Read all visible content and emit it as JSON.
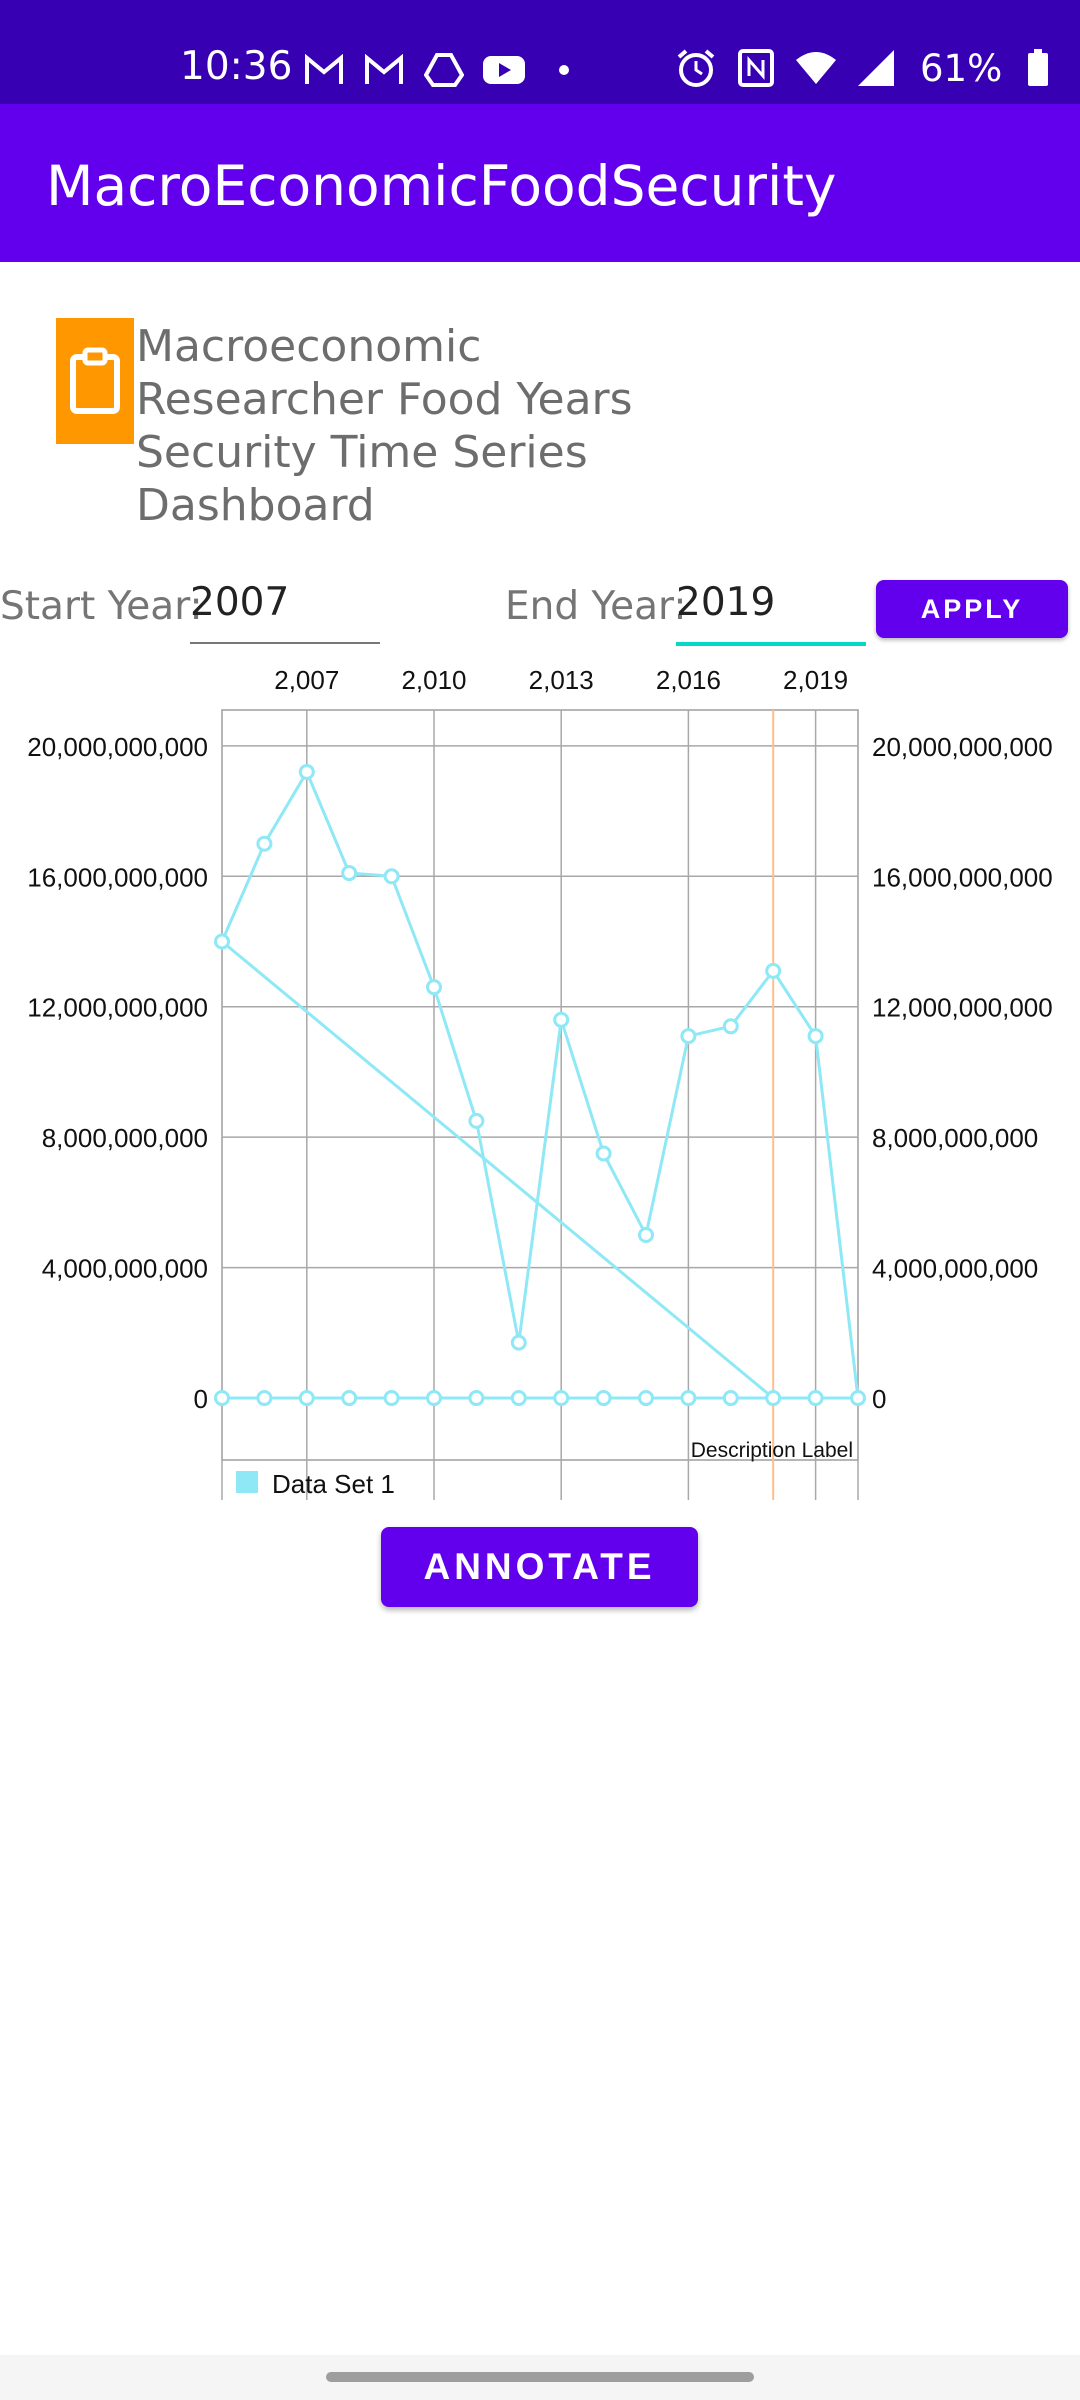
{
  "status_bar": {
    "time": "10:36",
    "battery_percent": "61%",
    "left_icons": [
      "gmail-icon",
      "gmail-icon",
      "drive-icon",
      "youtube-icon",
      "dot-icon"
    ],
    "right_icons": [
      "alarm-icon",
      "nfc-icon",
      "wifi-icon",
      "signal-icon",
      "battery-icon"
    ]
  },
  "app_bar": {
    "title": "MacroEconomicFoodSecurity"
  },
  "header": {
    "icon": "clipboard-icon",
    "title": "Macroeconomic Researcher Food Years Security Time Series Dashboard"
  },
  "filters": {
    "start_label": "Start Year:",
    "start_value": "2007",
    "end_label": "End Year:",
    "end_value": "2019",
    "apply_label": "APPLY"
  },
  "chart_data": {
    "type": "line",
    "x_tick_labels": [
      "2,007",
      "2,010",
      "2,013",
      "2,016",
      "2,019"
    ],
    "x_ticks": [
      2007,
      2010,
      2013,
      2016,
      2019
    ],
    "xlim": [
      2005,
      2020
    ],
    "y_tick_labels": [
      "20,000,000,000",
      "16,000,000,000",
      "12,000,000,000",
      "8,000,000,000",
      "4,000,000,000",
      "0"
    ],
    "y_ticks": [
      20000000000,
      16000000000,
      12000000000,
      8000000000,
      4000000000,
      0
    ],
    "ylim": [
      -1900000000,
      21100000000
    ],
    "highlight_x": 2018,
    "description": "Description Label",
    "series": [
      {
        "name": "Data Set 1",
        "color": "#8ee8f5",
        "points": [
          [
            2005,
            14000000000
          ],
          [
            2006,
            17000000000
          ],
          [
            2007,
            19200000000
          ],
          [
            2008,
            16100000000
          ],
          [
            2009,
            16000000000
          ],
          [
            2010,
            12600000000
          ],
          [
            2011,
            8500000000
          ],
          [
            2012,
            1700000000
          ],
          [
            2013,
            11600000000
          ],
          [
            2014,
            7500000000
          ],
          [
            2015,
            5000000000
          ],
          [
            2016,
            11100000000
          ],
          [
            2017,
            11400000000
          ],
          [
            2018,
            13100000000
          ],
          [
            2019,
            11100000000
          ],
          [
            2020,
            0
          ],
          [
            2020,
            0
          ],
          [
            2019,
            0
          ],
          [
            2018,
            0
          ],
          [
            2017,
            0
          ],
          [
            2016,
            0
          ],
          [
            2015,
            0
          ],
          [
            2014,
            0
          ],
          [
            2013,
            0
          ],
          [
            2012,
            0
          ],
          [
            2011,
            0
          ],
          [
            2010,
            0
          ],
          [
            2009,
            0
          ],
          [
            2008,
            0
          ],
          [
            2007,
            0
          ],
          [
            2006,
            0
          ],
          [
            2005,
            0
          ],
          [
            2018,
            0
          ],
          [
            2005,
            14000000000
          ]
        ]
      }
    ],
    "grid": true,
    "legend": "bottom-left"
  },
  "actions": {
    "annotate_label": "ANNOTATE"
  }
}
